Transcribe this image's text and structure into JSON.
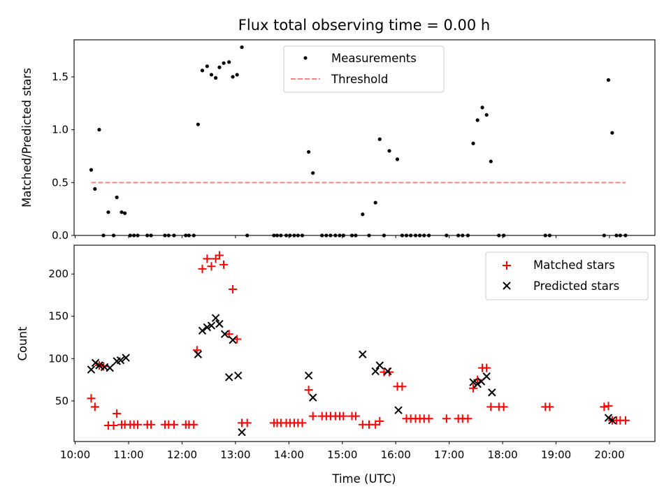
{
  "chart_data": [
    {
      "type": "scatter",
      "title": "Flux total observing time = 0.00 h",
      "xlabel": "",
      "ylabel": "Matched/Predicted stars",
      "xlim": [
        9.98,
        20.85
      ],
      "ylim": [
        0,
        1.85
      ],
      "yticks": [
        0,
        0.5,
        1.0,
        1.5
      ],
      "yticklabels": [
        "0.0",
        "0.5",
        "1.0",
        "1.5"
      ],
      "legend": {
        "placement": "upper center",
        "entries": [
          "Measurements",
          "Threshold"
        ]
      },
      "threshold": {
        "name": "Threshold",
        "value": 0.5,
        "x_range": [
          10.3,
          20.3
        ],
        "color": "#ff8080",
        "style": "dashed"
      },
      "series": [
        {
          "name": "Measurements",
          "marker": "dot",
          "color": "#000000",
          "x": [
            10.3,
            10.37,
            10.45,
            10.53,
            10.62,
            10.72,
            10.78,
            10.87,
            10.93,
            11.03,
            11.1,
            11.17,
            11.35,
            11.42,
            11.68,
            11.75,
            11.85,
            12.07,
            12.13,
            12.22,
            12.3,
            12.38,
            12.47,
            12.55,
            12.63,
            12.7,
            12.78,
            12.88,
            12.95,
            13.03,
            13.12,
            13.22,
            13.72,
            13.78,
            13.85,
            13.95,
            14.02,
            14.1,
            14.17,
            14.25,
            14.37,
            14.45,
            14.62,
            14.7,
            14.78,
            14.87,
            14.95,
            15.02,
            15.18,
            15.25,
            15.38,
            15.5,
            15.62,
            15.7,
            15.78,
            15.88,
            16.03,
            16.12,
            16.2,
            16.28,
            16.37,
            16.45,
            16.53,
            16.62,
            16.95,
            17.17,
            17.25,
            17.35,
            17.45,
            17.53,
            17.62,
            17.7,
            17.78,
            17.93,
            18.02,
            18.8,
            18.88,
            19.9,
            19.98,
            20.05,
            20.13,
            20.2,
            20.3
          ],
          "y": [
            0.62,
            0.44,
            1.0,
            0.0,
            0.22,
            0.0,
            0.36,
            0.22,
            0.21,
            0.0,
            0.0,
            0.0,
            0.0,
            0.0,
            0.0,
            0.0,
            0.0,
            0.0,
            0.0,
            0.0,
            1.05,
            1.56,
            1.6,
            1.52,
            1.49,
            1.59,
            1.63,
            1.64,
            1.5,
            1.52,
            1.78,
            0.0,
            0.0,
            0.0,
            0.0,
            0.0,
            0.0,
            0.0,
            0.0,
            0.0,
            0.79,
            0.59,
            0.0,
            0.0,
            0.0,
            0.0,
            0.0,
            0.0,
            0.0,
            0.0,
            0.2,
            0.0,
            0.31,
            0.91,
            0.0,
            0.8,
            0.72,
            0.0,
            0.0,
            0.0,
            0.0,
            0.0,
            0.0,
            0.0,
            0.0,
            0.0,
            0.0,
            0.0,
            0.87,
            1.09,
            1.21,
            1.14,
            0.7,
            0.0,
            0.0,
            0.0,
            0.0,
            0.0,
            1.47,
            0.97,
            0.0,
            0.0,
            0.0
          ]
        }
      ]
    },
    {
      "type": "scatter",
      "title": "",
      "xlabel": "Time (UTC)",
      "ylabel": "Count",
      "xlim": [
        9.98,
        20.85
      ],
      "ylim": [
        2,
        234
      ],
      "yticks": [
        50,
        100,
        150,
        200
      ],
      "yticklabels": [
        "50",
        "100",
        "150",
        "200"
      ],
      "xticks": [
        10,
        11,
        12,
        13,
        14,
        15,
        16,
        17,
        18,
        19,
        20
      ],
      "xticklabels": [
        "10:00",
        "11:00",
        "12:00",
        "13:00",
        "14:00",
        "15:00",
        "16:00",
        "17:00",
        "18:00",
        "19:00",
        "20:00"
      ],
      "legend": {
        "placement": "top-right",
        "entries": [
          "Matched stars",
          "Predicted stars"
        ]
      },
      "series": [
        {
          "name": "Matched stars",
          "marker": "plus",
          "color": "#ff0000",
          "x": [
            10.3,
            10.37,
            10.45,
            10.53,
            10.62,
            10.72,
            10.78,
            10.87,
            10.93,
            11.03,
            11.1,
            11.17,
            11.35,
            11.42,
            11.68,
            11.75,
            11.85,
            12.07,
            12.13,
            12.22,
            12.28,
            12.38,
            12.47,
            12.55,
            12.63,
            12.7,
            12.78,
            12.88,
            12.95,
            13.03,
            13.12,
            13.22,
            13.72,
            13.78,
            13.85,
            13.95,
            14.02,
            14.1,
            14.17,
            14.25,
            14.37,
            14.45,
            14.62,
            14.7,
            14.78,
            14.87,
            14.95,
            15.02,
            15.18,
            15.25,
            15.38,
            15.5,
            15.62,
            15.7,
            15.78,
            15.88,
            16.03,
            16.12,
            16.2,
            16.28,
            16.37,
            16.45,
            16.53,
            16.62,
            16.95,
            17.17,
            17.25,
            17.35,
            17.45,
            17.53,
            17.62,
            17.7,
            17.78,
            17.93,
            18.02,
            18.8,
            18.88,
            19.9,
            19.98,
            20.05,
            20.13,
            20.2,
            20.3
          ],
          "y": [
            53,
            43,
            92,
            91,
            21,
            21,
            35,
            22,
            22,
            22,
            22,
            22,
            22,
            22,
            22,
            22,
            22,
            22,
            22,
            22,
            110,
            206,
            218,
            209,
            218,
            222,
            211,
            129,
            182,
            123,
            24,
            24,
            24,
            24,
            24,
            24,
            24,
            24,
            24,
            24,
            63,
            32,
            32,
            32,
            32,
            32,
            32,
            32,
            32,
            32,
            22,
            22,
            22,
            26,
            84,
            84,
            67,
            67,
            29,
            29,
            29,
            29,
            29,
            29,
            29,
            29,
            29,
            29,
            65,
            75,
            89,
            89,
            43,
            43,
            43,
            43,
            43,
            43,
            44,
            27,
            27,
            27,
            27
          ]
        },
        {
          "name": "Predicted stars",
          "marker": "x",
          "color": "#000000",
          "x": [
            10.3,
            10.38,
            10.45,
            10.55,
            10.65,
            10.78,
            10.85,
            10.95,
            12.3,
            12.38,
            12.47,
            12.55,
            12.63,
            12.7,
            12.8,
            12.88,
            12.95,
            13.05,
            13.12,
            14.37,
            14.45,
            15.38,
            15.62,
            15.7,
            15.85,
            16.05,
            17.45,
            17.53,
            17.6,
            17.7,
            17.8,
            19.98,
            20.05
          ],
          "y": [
            87,
            95,
            92,
            90,
            89,
            97,
            98,
            101,
            105,
            133,
            137,
            139,
            148,
            141,
            129,
            78,
            122,
            80,
            13,
            80,
            54,
            105,
            85,
            92,
            85,
            39,
            72,
            70,
            73,
            79,
            60,
            30,
            27
          ]
        }
      ]
    }
  ]
}
